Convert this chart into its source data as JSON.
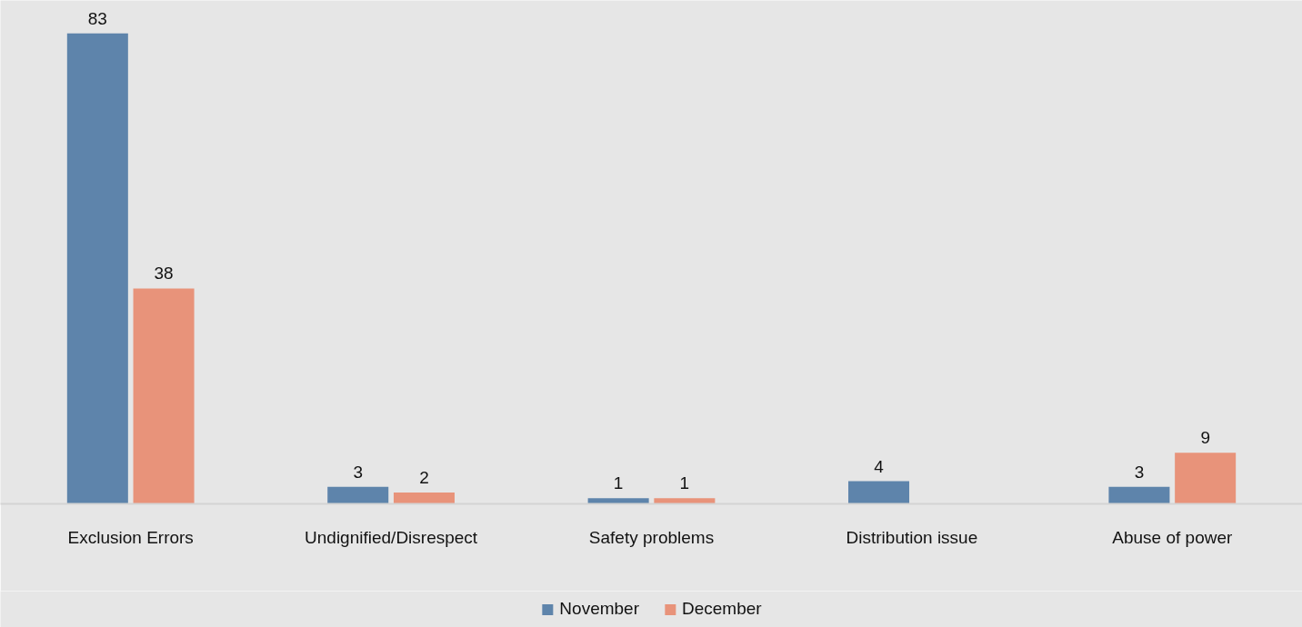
{
  "chart_data": {
    "type": "bar",
    "categories": [
      "Exclusion Errors",
      "Undignified/Disrespect",
      "Safety problems",
      "Distribution issue",
      "Abuse of power"
    ],
    "series": [
      {
        "name": "November",
        "color": "#5e84ab",
        "values": [
          83,
          3,
          1,
          4,
          3
        ]
      },
      {
        "name": "December",
        "color": "#e8937a",
        "values": [
          38,
          2,
          1,
          null,
          9
        ]
      }
    ],
    "data_labels": true,
    "legend": "bottom"
  }
}
